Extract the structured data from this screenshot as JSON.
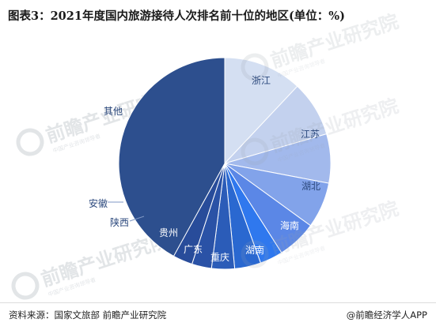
{
  "title": "图表3：2021年度国内旅游接待人次排名前十位的地区(单位：%)",
  "watermark": {
    "brand": "前瞻产业研究院",
    "sub": "中国产业咨询领导者"
  },
  "footer": {
    "source": "资料来源：国家文旅部 前瞻产业研究院",
    "brand": "@前瞻经济学人APP"
  },
  "chart_data": {
    "type": "pie",
    "title": "图表3：2021年度国内旅游接待人次排名前十位的地区(单位：%)",
    "start": "12 o'clock, clockwise",
    "slices": [
      {
        "label": "浙江",
        "value": 12.0,
        "color": "#d4dff2"
      },
      {
        "label": "江苏",
        "value": 8.5,
        "color": "#c3d1ee"
      },
      {
        "label": "湖北",
        "value": 7.5,
        "color": "#a2b9ec"
      },
      {
        "label": "海南",
        "value": 7.0,
        "color": "#82a3ea"
      },
      {
        "label": "湖南",
        "value": 6.0,
        "color": "#5b87e6"
      },
      {
        "label": "重庆",
        "value": 3.5,
        "color": "#2f78ee"
      },
      {
        "label": "广东",
        "value": 4.0,
        "color": "#2a68d0"
      },
      {
        "label": "贵州",
        "value": 3.5,
        "color": "#2b5cb8"
      },
      {
        "label": "陕西",
        "value": 3.0,
        "color": "#2a52a6"
      },
      {
        "label": "安徽",
        "value": 3.0,
        "color": "#284c9a"
      },
      {
        "label": "其他",
        "value": 42.0,
        "color": "#2d4f8e"
      }
    ]
  }
}
